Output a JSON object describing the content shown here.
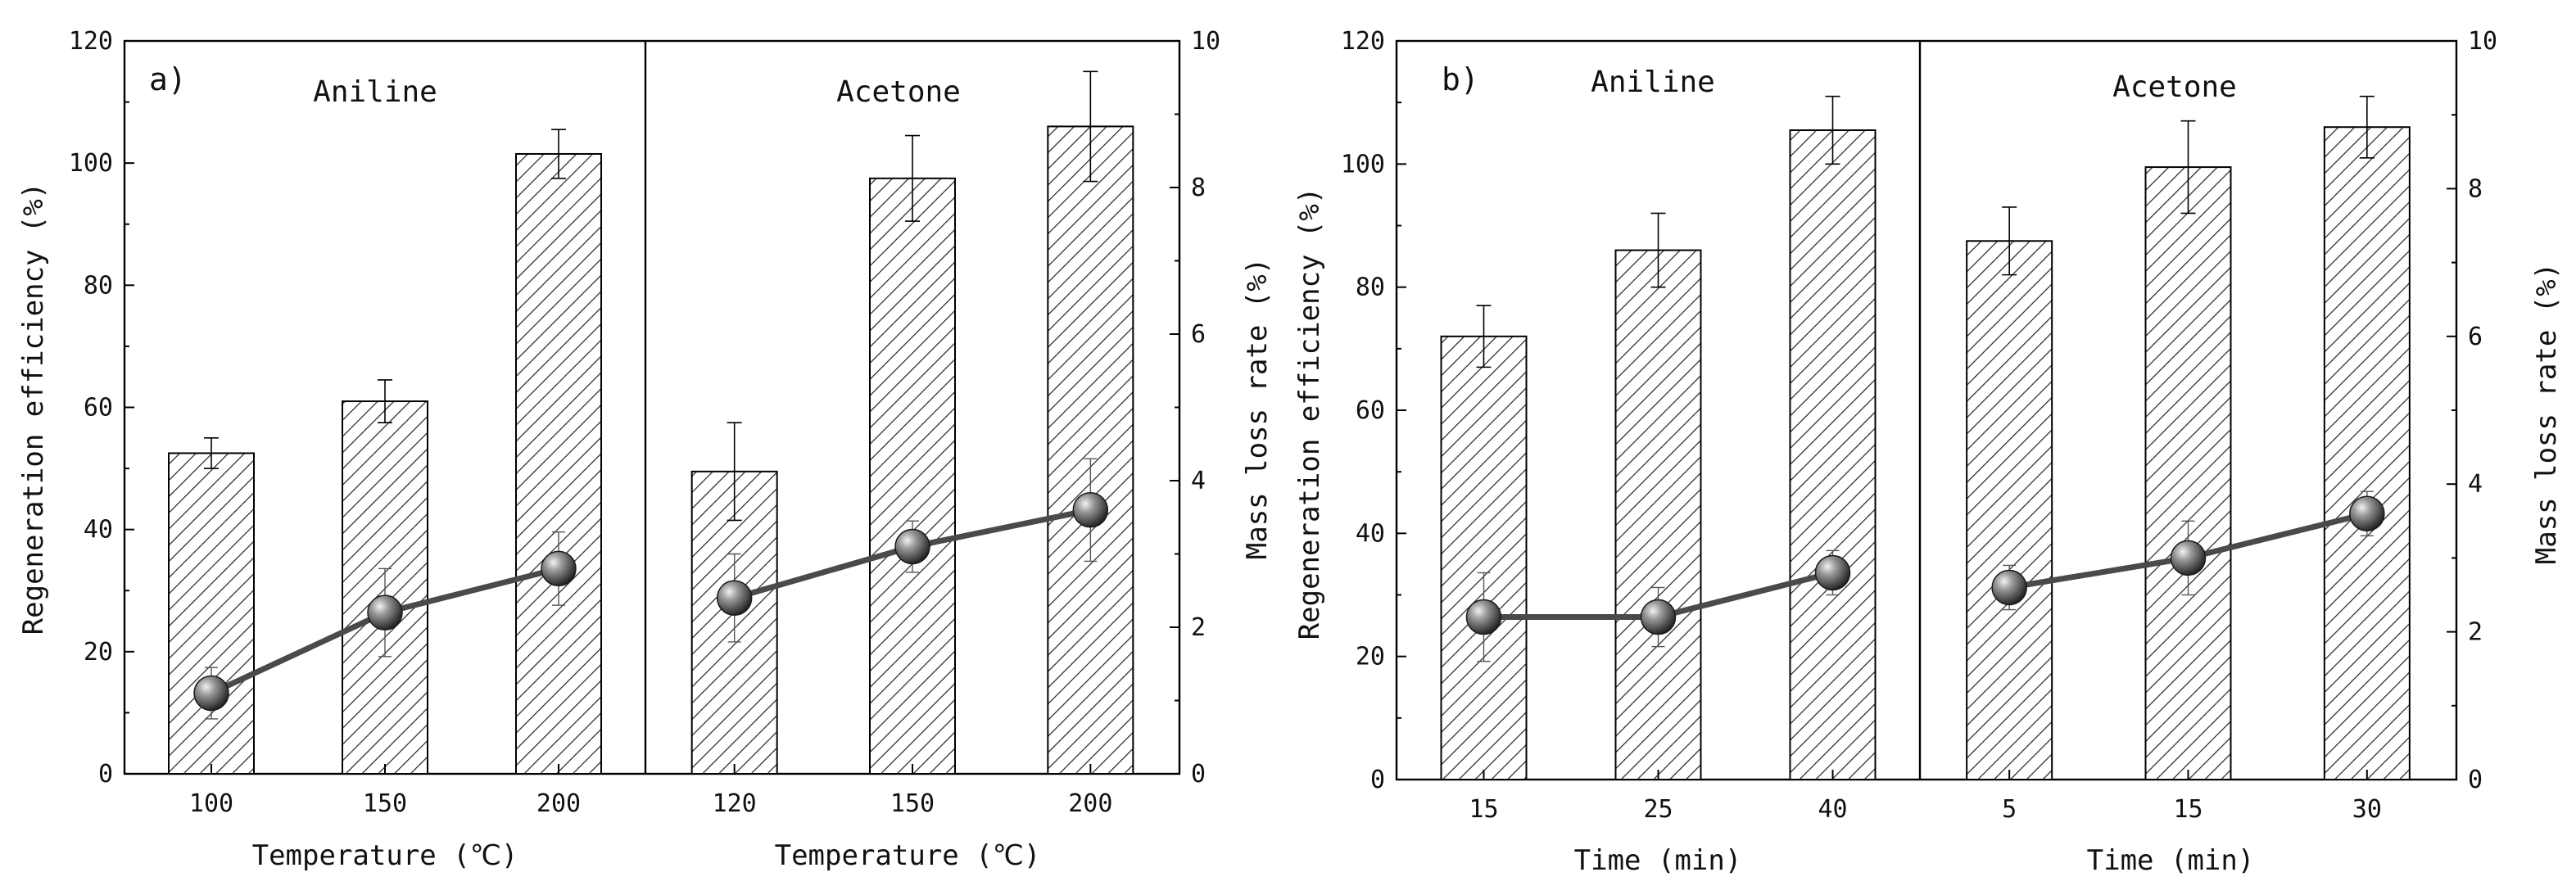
{
  "chart_data": [
    {
      "type": "bar",
      "panel_label": "a)",
      "xlabel": "Temperature (℃)",
      "ylabel_left": "Regeneration efficiency (%)",
      "ylabel_right": "Mass loss rate (%)",
      "ylim_left": [
        0,
        120
      ],
      "ylim_right": [
        0,
        10
      ],
      "yticks_left": [
        "0",
        "20",
        "40",
        "60",
        "80",
        "100",
        "120"
      ],
      "yticks_right": [
        "0",
        "2",
        "4",
        "6",
        "8",
        "10"
      ],
      "groups": [
        {
          "name": "Aniline",
          "categories": [
            "100",
            "150",
            "200"
          ],
          "bar_values": [
            52.5,
            61,
            101.5
          ],
          "bar_errors": [
            2.5,
            3.5,
            4
          ],
          "line_values": [
            1.1,
            2.2,
            2.8
          ],
          "line_errors": [
            0.35,
            0.6,
            0.5
          ]
        },
        {
          "name": "Acetone",
          "categories": [
            "120",
            "150",
            "200"
          ],
          "bar_values": [
            49.5,
            97.5,
            106
          ],
          "bar_errors": [
            8,
            7,
            9
          ],
          "line_values": [
            2.4,
            3.1,
            3.6
          ],
          "line_errors": [
            0.6,
            0.35,
            0.7
          ]
        }
      ]
    },
    {
      "type": "bar",
      "panel_label": "b)",
      "xlabel": "Time (min)",
      "ylabel_left": "Regeneration efficiency (%)",
      "ylabel_right": "Mass loss rate (%)",
      "ylim_left": [
        0,
        120
      ],
      "ylim_right": [
        0,
        10
      ],
      "yticks_left": [
        "0",
        "20",
        "40",
        "60",
        "80",
        "100",
        "120"
      ],
      "yticks_right": [
        "0",
        "2",
        "4",
        "6",
        "8",
        "10"
      ],
      "groups": [
        {
          "name": "Aniline",
          "categories": [
            "15",
            "25",
            "40"
          ],
          "bar_values": [
            72,
            86,
            105.5
          ],
          "bar_errors": [
            5,
            6,
            5.5
          ],
          "line_values": [
            2.2,
            2.2,
            2.8
          ],
          "line_errors": [
            0.6,
            0.4,
            0.3
          ]
        },
        {
          "name": "Acetone",
          "categories": [
            "5",
            "15",
            "30"
          ],
          "bar_values": [
            87.5,
            99.5,
            106
          ],
          "bar_errors": [
            5.5,
            7.5,
            5
          ],
          "line_values": [
            2.6,
            3.0,
            3.6
          ],
          "line_errors": [
            0.3,
            0.5,
            0.3
          ]
        }
      ]
    }
  ],
  "colors": {
    "axis": "#000000",
    "bar_fill": "#ffffff",
    "hatch": "#222222",
    "line": "#4a4a4a",
    "marker_light": "#d8d8d8",
    "marker_dark": "#2b2b2b"
  }
}
